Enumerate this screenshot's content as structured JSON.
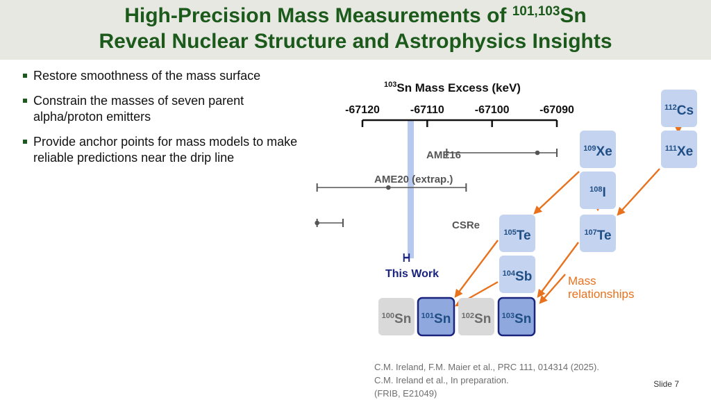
{
  "title": {
    "line1_prefix": "High-Precision Mass Measurements of ",
    "line1_sup": "101,103",
    "line1_suffix": "Sn",
    "line2": "Reveal Nuclear Structure and Astrophysics Insights"
  },
  "bullets": [
    "Restore smoothness of the mass surface",
    "Constrain the masses of seven parent alpha/proton emitters",
    "Provide anchor points for mass models to make reliable predictions near the drip line"
  ],
  "chart_data": {
    "type": "scatter",
    "title_sup": "103",
    "title": "Sn Mass Excess (keV)",
    "x_ticks": [
      "-67120",
      "-67110",
      "-67100",
      "-67090"
    ],
    "xlim": [
      -67120,
      -67090
    ],
    "points": [
      {
        "label": "AME16",
        "value": -67093,
        "err_low": -67107,
        "err_high": -67090
      },
      {
        "label": "AME20 (extrap.)",
        "value": -67116,
        "err_low": -67127,
        "err_high": -67104
      },
      {
        "label": "CSRe",
        "value": -67127,
        "err_low": -67127,
        "err_high": -67123
      },
      {
        "label": "This Work",
        "value": -67113.2,
        "err_low": -67113.6,
        "err_high": -67112.8
      }
    ]
  },
  "nuclides": [
    {
      "sup": "112",
      "el": "Cs",
      "style": "light"
    },
    {
      "sup": "109",
      "el": "Xe",
      "style": "light"
    },
    {
      "sup": "111",
      "el": "Xe",
      "style": "light"
    },
    {
      "sup": "108",
      "el": "I",
      "style": "light"
    },
    {
      "sup": "105",
      "el": "Te",
      "style": "light"
    },
    {
      "sup": "107",
      "el": "Te",
      "style": "light"
    },
    {
      "sup": "104",
      "el": "Sb",
      "style": "light"
    },
    {
      "sup": "100",
      "el": "Sn",
      "style": "gray"
    },
    {
      "sup": "101",
      "el": "Sn",
      "style": "measured"
    },
    {
      "sup": "102",
      "el": "Sn",
      "style": "gray"
    },
    {
      "sup": "103",
      "el": "Sn",
      "style": "measured"
    }
  ],
  "mass_relationships_label": [
    "Mass",
    "relationships"
  ],
  "references": [
    "C.M. Ireland, F.M. Maier et al., PRC 111, 014314 (2025).",
    "C.M. Ireland et al., In preparation.",
    "(FRIB, E21049)"
  ],
  "slide_number": "Slide 7",
  "colors": {
    "title_green": "#1c5a1c",
    "arrow_orange": "#e8711d",
    "box_light": "#c4d3f0",
    "box_measured": "#8fa8de",
    "box_border": "#1a237e",
    "box_gray": "#d9d9d9",
    "band": "#b7c9ee"
  }
}
